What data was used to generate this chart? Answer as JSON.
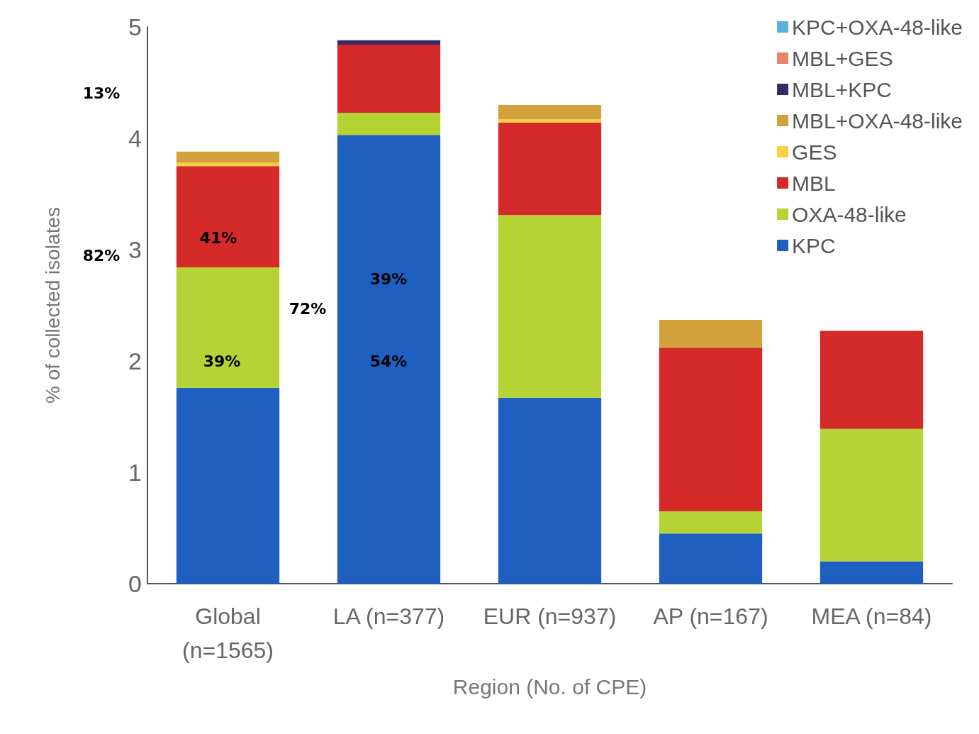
{
  "chart_data": {
    "type": "bar",
    "stacked": true,
    "xlabel": "Region (No. of CPE)",
    "ylabel": "% of collected isolates",
    "categories": [
      "Global\n(n=1565)",
      "LA (n=377)",
      "EUR (n=937)",
      "AP (n=167)",
      "MEA (n=84)"
    ],
    "ylim": [
      0,
      5
    ],
    "yticks": [
      0,
      1,
      2,
      3,
      4,
      5
    ],
    "grid": false,
    "legend": "top right",
    "series": [
      {
        "name": "KPC",
        "color": "#1f5fbf",
        "values": [
          1.76,
          4.03,
          1.67,
          0.45,
          0.2
        ]
      },
      {
        "name": "OXA-48-like",
        "color": "#b5d334",
        "values": [
          1.08,
          0.2,
          1.64,
          0.2,
          1.19
        ]
      },
      {
        "name": "MBL",
        "color": "#d42a2a",
        "values": [
          0.91,
          0.61,
          0.83,
          1.47,
          0.88
        ]
      },
      {
        "name": "GES",
        "color": "#f7d046",
        "values": [
          0.03,
          null,
          0.03,
          null,
          null
        ]
      },
      {
        "name": "MBL+OXA-48-like",
        "color": "#d4a03a",
        "values": [
          0.1,
          null,
          0.13,
          0.25,
          null
        ]
      },
      {
        "name": "MBL+KPC",
        "color": "#3b2a6a",
        "values": [
          null,
          0.04,
          null,
          null,
          null
        ]
      },
      {
        "name": "MBL+GES",
        "color": "#e8836a",
        "values": [
          null,
          null,
          null,
          null,
          null
        ]
      },
      {
        "name": "KPC+OXA-48-like",
        "color": "#5ab0e0",
        "values": [
          null,
          null,
          null,
          null,
          null
        ]
      }
    ],
    "annotations": [
      "13%",
      "82%",
      "41%",
      "72%",
      "39%",
      "54%",
      "39%"
    ]
  }
}
